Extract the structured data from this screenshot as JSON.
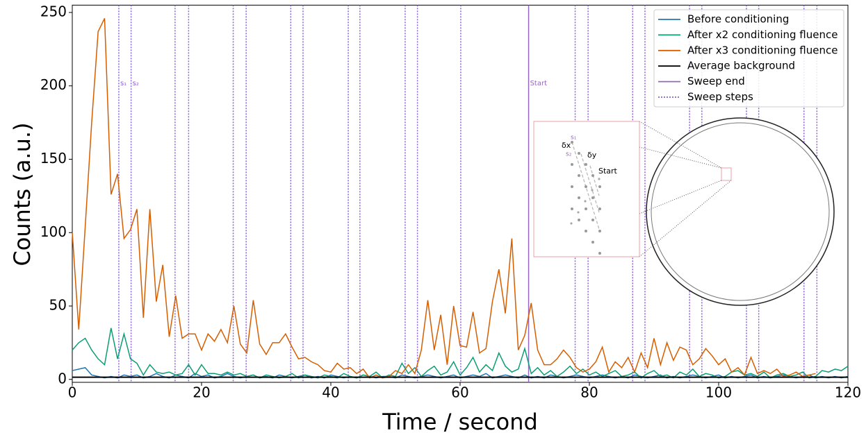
{
  "chart_data": {
    "type": "line",
    "x_label": "Time / second",
    "y_label": "Counts (a.u.)",
    "xlim": [
      0,
      120
    ],
    "ylim": [
      -2,
      255
    ],
    "xticks": [
      0,
      20,
      40,
      60,
      80,
      100,
      120
    ],
    "yticks": [
      0,
      50,
      100,
      150,
      200,
      250
    ],
    "legend": "upper right",
    "x": [
      0,
      1,
      2,
      3,
      4,
      5,
      6,
      7,
      8,
      9,
      10,
      11,
      12,
      13,
      14,
      15,
      16,
      17,
      18,
      19,
      20,
      21,
      22,
      23,
      24,
      25,
      26,
      27,
      28,
      29,
      30,
      31,
      32,
      33,
      34,
      35,
      36,
      37,
      38,
      39,
      40,
      41,
      42,
      43,
      44,
      45,
      46,
      47,
      48,
      49,
      50,
      51,
      52,
      53,
      54,
      55,
      56,
      57,
      58,
      59,
      60,
      61,
      62,
      63,
      64,
      65,
      66,
      67,
      68,
      69,
      70,
      71,
      72,
      73,
      74,
      75,
      76,
      77,
      78,
      79,
      80,
      81,
      82,
      83,
      84,
      85,
      86,
      87,
      88,
      89,
      90,
      91,
      92,
      93,
      94,
      95,
      96,
      97,
      98,
      99,
      100,
      101,
      102,
      103,
      104,
      105,
      106,
      107,
      108,
      109,
      110,
      111,
      112,
      113,
      114,
      115,
      116,
      117,
      118,
      119,
      120
    ],
    "series": [
      {
        "name": "Before conditioning",
        "color": "#1f77b4",
        "values": [
          6,
          7,
          8,
          3,
          2,
          1,
          2,
          1,
          3,
          2,
          3,
          1,
          2,
          4,
          2,
          1,
          3,
          2,
          1,
          4,
          2,
          3,
          1,
          2,
          4,
          2,
          1,
          2,
          3,
          1,
          2,
          1,
          3,
          2,
          1,
          2,
          3,
          1,
          2,
          1,
          3,
          2,
          1,
          2,
          1,
          3,
          2,
          1,
          2,
          2,
          1,
          3,
          2,
          1,
          2,
          3,
          2,
          1,
          2,
          3,
          1,
          2,
          3,
          2,
          4,
          1,
          2,
          3,
          2,
          1,
          3,
          1,
          2,
          1,
          3,
          2,
          1,
          2,
          3,
          2,
          1,
          2,
          3,
          2,
          1,
          2,
          1,
          3,
          2,
          1,
          2,
          3,
          1,
          2,
          1,
          2,
          3,
          2,
          1,
          2,
          3,
          1,
          2,
          1,
          2,
          3,
          1,
          2,
          1,
          2,
          3,
          2,
          1,
          2,
          3,
          1,
          2,
          1,
          2,
          1,
          2
        ]
      },
      {
        "name": "After x2 conditioning fluence",
        "color": "#0b9e73",
        "values": [
          20,
          25,
          28,
          20,
          14,
          10,
          35,
          14,
          31,
          14,
          11,
          3,
          10,
          5,
          4,
          5,
          3,
          4,
          10,
          3,
          10,
          4,
          4,
          3,
          5,
          3,
          4,
          2,
          3,
          1,
          3,
          2,
          1,
          2,
          4,
          1,
          3,
          2,
          1,
          3,
          2,
          1,
          4,
          2,
          1,
          3,
          2,
          5,
          1,
          3,
          2,
          11,
          4,
          8,
          2,
          6,
          9,
          3,
          5,
          12,
          3,
          8,
          15,
          5,
          10,
          6,
          18,
          9,
          5,
          7,
          21,
          4,
          8,
          3,
          6,
          2,
          5,
          9,
          4,
          7,
          3,
          5,
          2,
          4,
          6,
          2,
          3,
          5,
          1,
          4,
          6,
          2,
          3,
          1,
          5,
          3,
          7,
          2,
          4,
          3,
          1,
          2,
          5,
          6,
          3,
          4,
          2,
          5,
          1,
          3,
          4,
          2,
          3,
          5,
          1,
          2,
          6,
          5,
          7,
          6,
          9
        ]
      },
      {
        "name": "After x3 conditioning fluence",
        "color": "#d55e00",
        "values": [
          100,
          34,
          104,
          175,
          237,
          246,
          126,
          140,
          96,
          102,
          116,
          42,
          116,
          53,
          78,
          29,
          57,
          28,
          31,
          31,
          20,
          31,
          26,
          34,
          25,
          50,
          24,
          18,
          54,
          24,
          17,
          25,
          25,
          31,
          22,
          14,
          15,
          12,
          10,
          6,
          5,
          11,
          7,
          8,
          4,
          7,
          1,
          3,
          1,
          2,
          6,
          4,
          10,
          4,
          20,
          54,
          20,
          44,
          10,
          50,
          23,
          22,
          46,
          18,
          21,
          53,
          75,
          45,
          96,
          20,
          30,
          52,
          20,
          10,
          10,
          14,
          20,
          15,
          8,
          5,
          7,
          12,
          22,
          5,
          12,
          8,
          15,
          5,
          18,
          8,
          28,
          10,
          25,
          13,
          22,
          20,
          10,
          14,
          21,
          16,
          10,
          14,
          5,
          8,
          3,
          15,
          4,
          6,
          4,
          7,
          2,
          3,
          5,
          2,
          3,
          4,
          null,
          null,
          null,
          null,
          null
        ]
      }
    ],
    "average_background": {
      "name": "Average background",
      "color": "#000000",
      "value": 1.5
    },
    "sweep_end": {
      "name": "Sweep end",
      "color": "#9467bd",
      "x": 70.6,
      "label": "Start"
    },
    "sweep_steps": {
      "name": "Sweep steps",
      "color": "#8a5fd6",
      "x": [
        7.2,
        9.1,
        15.9,
        18,
        24.9,
        26.9,
        33.8,
        35.7,
        42.7,
        44.5,
        51.5,
        53.4,
        60.1,
        77.8,
        79.8,
        86.7,
        88.6,
        95.5,
        97.4,
        104.3,
        106.2,
        113.2,
        115.2
      ],
      "labels": [
        "s₁",
        "s₂"
      ]
    },
    "inset": {
      "dx_label": "δx",
      "dy_label": "δy",
      "start_label": "Start",
      "s1_label": "s₁",
      "s2_label": "s₂"
    }
  }
}
